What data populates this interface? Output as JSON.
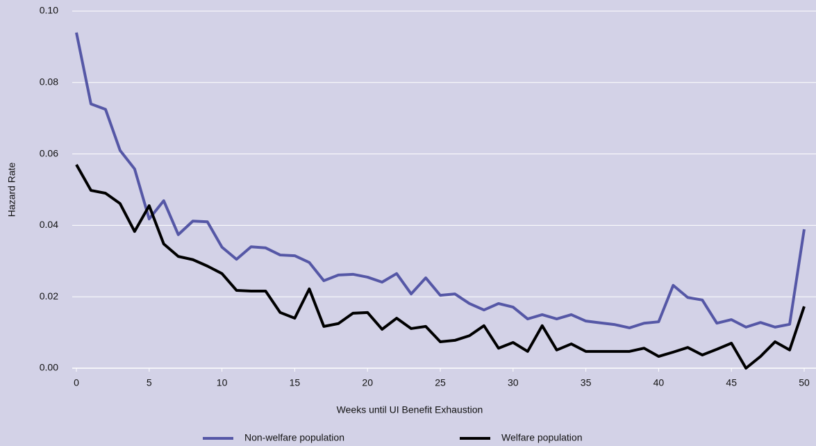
{
  "chart_data": {
    "type": "line",
    "x_label": "Weeks until UI Benefit Exhaustion",
    "y_label": "Hazard Rate",
    "x": [
      0,
      1,
      2,
      3,
      4,
      5,
      6,
      7,
      8,
      9,
      10,
      11,
      12,
      13,
      14,
      15,
      16,
      17,
      18,
      19,
      20,
      21,
      22,
      23,
      24,
      25,
      26,
      27,
      28,
      29,
      30,
      31,
      32,
      33,
      34,
      35,
      36,
      37,
      38,
      39,
      40,
      41,
      42,
      43,
      44,
      45,
      46,
      47,
      48,
      49,
      50
    ],
    "series": [
      {
        "name": "Non-welfare population",
        "color": "#5557a6",
        "values": [
          0.094,
          0.074,
          0.0725,
          0.061,
          0.0558,
          0.0418,
          0.0469,
          0.0374,
          0.0412,
          0.041,
          0.0339,
          0.0305,
          0.034,
          0.0337,
          0.0317,
          0.0315,
          0.0296,
          0.0245,
          0.0261,
          0.0263,
          0.0255,
          0.0241,
          0.0265,
          0.0208,
          0.0253,
          0.0204,
          0.0208,
          0.0181,
          0.0163,
          0.0181,
          0.0171,
          0.0138,
          0.015,
          0.0138,
          0.015,
          0.0132,
          0.0127,
          0.0122,
          0.0113,
          0.0126,
          0.013,
          0.0232,
          0.0198,
          0.0191,
          0.0126,
          0.0136,
          0.0115,
          0.0128,
          0.0115,
          0.0123,
          0.0389
        ]
      },
      {
        "name": "Welfare population",
        "color": "#000000",
        "values": [
          0.057,
          0.0498,
          0.049,
          0.0461,
          0.0383,
          0.0455,
          0.0348,
          0.0313,
          0.0304,
          0.0286,
          0.0265,
          0.0218,
          0.0216,
          0.0216,
          0.0156,
          0.014,
          0.0222,
          0.0117,
          0.0125,
          0.0154,
          0.0156,
          0.0109,
          0.014,
          0.0111,
          0.0117,
          0.0074,
          0.0078,
          0.0091,
          0.0119,
          0.0056,
          0.0072,
          0.0047,
          0.0119,
          0.0051,
          0.0068,
          0.0047,
          0.0047,
          0.0047,
          0.0047,
          0.0056,
          0.0033,
          0.0045,
          0.0058,
          0.0037,
          0.0053,
          0.007,
          0.0,
          0.0033,
          0.0074,
          0.0051,
          0.0173
        ]
      }
    ],
    "xlim": [
      0,
      50
    ],
    "xticks": [
      0,
      5,
      10,
      15,
      20,
      25,
      30,
      35,
      40,
      45,
      50
    ],
    "ylim": [
      0,
      0.1
    ],
    "yticks": [
      {
        "value": 0,
        "label": "0.00"
      },
      {
        "value": 0.02,
        "label": "0.02"
      },
      {
        "value": 0.04,
        "label": "0.04"
      },
      {
        "value": 0.06,
        "label": "0.06"
      },
      {
        "value": 0.08,
        "label": "0.08"
      },
      {
        "value": 0.1,
        "label": "0.10"
      }
    ],
    "grid": true,
    "legend": "bottom"
  }
}
